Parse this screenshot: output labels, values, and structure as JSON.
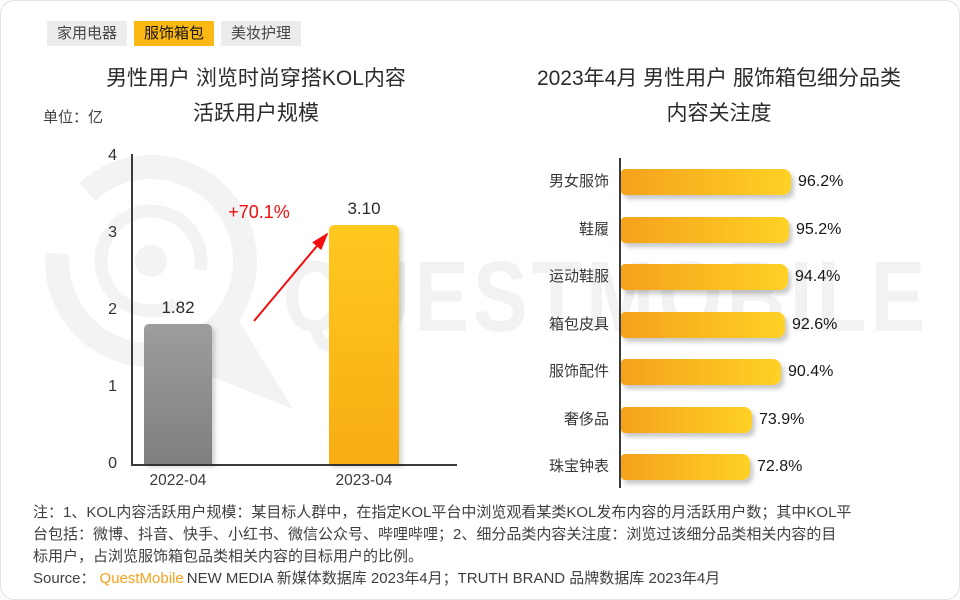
{
  "tabs": [
    {
      "id": "home-appliances",
      "label": "家用电器",
      "active": false
    },
    {
      "id": "apparel-bags",
      "label": "服饰箱包",
      "active": true
    },
    {
      "id": "beauty-care",
      "label": "美妆护理",
      "active": false
    }
  ],
  "colors": {
    "tab_active_amber": "#FBB712",
    "bar_yellow_top": "#FFC81F",
    "bar_yellow_bottom": "#F8AD13",
    "bar_gray_top": "#9D9D9D",
    "bar_gray_bottom": "#7F7F7F",
    "hbar_gradient_left": "#F5A21C",
    "hbar_gradient_right": "#FFD125",
    "growth_red": "#F30D0D",
    "source_brand_orange": "#F7A21C",
    "watermark_gray": "#F2F2F2"
  },
  "left_chart": {
    "title_line1": "男性用户 浏览时尚穿搭KOL内容",
    "title_line2": "活跃用户规模",
    "unit_label": "单位：亿"
  },
  "right_chart": {
    "title_line1": "2023年4月 男性用户 服饰箱包细分品类",
    "title_line2": "内容关注度"
  },
  "watermark": {
    "text": "QUESTMOBILE",
    "logo": "questmobile-target-logo"
  },
  "notes": {
    "line1": "注：1、KOL内容活跃用户规模：某目标人群中，在指定KOL平台中浏览观看某类KOL发布内容的月活跃用户数；其中KOL平",
    "line2": "台包括：微博、抖音、快手、小红书、微信公众号、哔哩哔哩；2、细分品类内容关注度：浏览过该细分品类相关内容的目",
    "line3": "标用户，占浏览服饰箱包品类相关内容的目标用户的比例。"
  },
  "source": {
    "prefix": "Source：",
    "brand": "QuestMobile",
    "rest": "NEW MEDIA 新媒体数据库 2023年4月；TRUTH BRAND 品牌数据库 2023年4月"
  },
  "chart_data": [
    {
      "type": "bar",
      "title": "男性用户 浏览时尚穿搭KOL内容 活跃用户规模",
      "ylabel": "亿",
      "categories": [
        "2022-04",
        "2023-04"
      ],
      "values": [
        1.82,
        3.1
      ],
      "value_labels": [
        "1.82",
        "3.10"
      ],
      "bar_colors": [
        "gray-gradient",
        "yellow-gradient"
      ],
      "growth_annotation": "+70.1%",
      "ylim": [
        0,
        4
      ],
      "yticks": [
        0,
        1,
        2,
        3,
        4
      ],
      "grid": false
    },
    {
      "type": "bar",
      "orientation": "horizontal",
      "title": "2023年4月 男性用户 服饰箱包细分品类 内容关注度",
      "categories": [
        "男女服饰",
        "鞋履",
        "运动鞋服",
        "箱包皮具",
        "服饰配件",
        "奢侈品",
        "珠宝钟表"
      ],
      "category_ids": [
        "apparel",
        "footwear",
        "sportswear",
        "bags-leather",
        "apparel-accessories",
        "luxury",
        "jewelry-watches"
      ],
      "values": [
        96.2,
        95.2,
        94.4,
        92.6,
        90.4,
        73.9,
        72.8
      ],
      "value_labels": [
        "96.2%",
        "95.2%",
        "94.4%",
        "92.6%",
        "90.4%",
        "73.9%",
        "72.8%"
      ],
      "xlim": [
        0,
        100
      ],
      "grid": false
    }
  ]
}
